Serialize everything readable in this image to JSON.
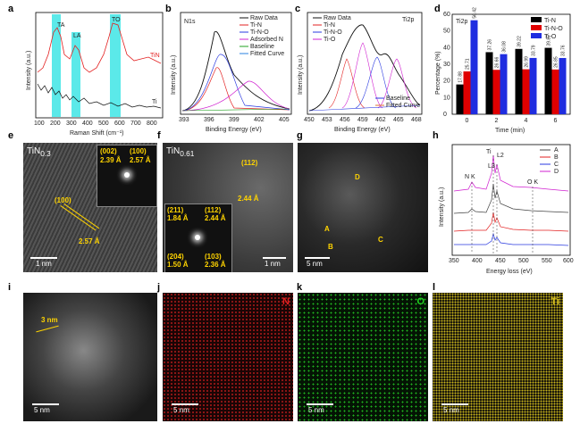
{
  "panels": {
    "a": {
      "label": "a",
      "peaks": [
        "TA",
        "LA",
        "TO"
      ],
      "series": [
        "TiN",
        "Ti"
      ],
      "xlabel": "Raman Shift (cm⁻¹)",
      "ylabel": "Intensity (a.u.)",
      "xticks": [
        "100",
        "200",
        "300",
        "400",
        "500",
        "600",
        "700",
        "800"
      ]
    },
    "b": {
      "label": "b",
      "tag": "N1s",
      "legend": [
        "Raw Data",
        "Ti-N",
        "Ti-N-O",
        "Adsorbed N",
        "Baseline",
        "Fitted Curve"
      ],
      "xlabel": "Binding Energy (eV)",
      "ylabel": "Intensity (a.u.)",
      "xticks": [
        "393",
        "396",
        "399",
        "402",
        "405"
      ]
    },
    "c": {
      "label": "c",
      "tag": "Ti2p",
      "legend": [
        "Raw Data",
        "Ti-N",
        "Ti-N-O",
        "Ti-O"
      ],
      "legend2": [
        "Baseline",
        "Fitted Curve"
      ],
      "xlabel": "Binding Energy (eV)",
      "ylabel": "Intensity (a.u.)",
      "xticks": [
        "450",
        "453",
        "456",
        "459",
        "462",
        "465",
        "468"
      ]
    },
    "d": {
      "label": "d",
      "tag": "Ti2p",
      "xlabel": "Time (min)",
      "ylabel": "Percentage (%)",
      "yticks": [
        "0",
        "10",
        "20",
        "30",
        "40",
        "50",
        "60"
      ]
    },
    "e": {
      "label": "e",
      "title": "TiN",
      "title_sub": "0.3",
      "fft1": "(002)",
      "fft1b": "2.39 Å",
      "fft2": "(100)",
      "fft2b": "2.57 Å",
      "plane": "(100)",
      "spacing": "2.57 Å",
      "scale": "1 nm"
    },
    "f": {
      "label": "f",
      "title": "TiN",
      "title_sub": "0.61",
      "plane": "(112)",
      "spacing": "2.44 Å",
      "f1": "(211)",
      "f1b": "1.84 Å",
      "f2": "(112)",
      "f2b": "2.44 Å",
      "f3": "(204)",
      "f3b": "1.50 Å",
      "f4": "(103)",
      "f4b": "2.36 Å",
      "scale": "1 nm"
    },
    "g": {
      "label": "g",
      "points": [
        "D",
        "A",
        "B",
        "C"
      ],
      "scale": "5 nm"
    },
    "h": {
      "label": "h",
      "legend": [
        "A",
        "B",
        "C",
        "D"
      ],
      "peaks": [
        "N K",
        "Ti",
        "L2",
        "L3",
        "O K"
      ],
      "xlabel": "Energy loss (eV)",
      "ylabel": "Intensity (a.u.)",
      "xticks": [
        "350",
        "400",
        "450",
        "500",
        "550",
        "600"
      ]
    },
    "i": {
      "label": "i",
      "width": "3 nm",
      "scale": "5 nm"
    },
    "j": {
      "label": "j",
      "element": "N",
      "scale": "5 nm",
      "color": "#e02020"
    },
    "k": {
      "label": "k",
      "element": "O",
      "scale": "5 nm",
      "color": "#20d020"
    },
    "l": {
      "label": "l",
      "element": "Ti",
      "scale": "5 nm",
      "color": "#d8c020"
    }
  },
  "chart_data": [
    {
      "type": "bar",
      "panel": "d",
      "categories": [
        "0",
        "2",
        "4",
        "6"
      ],
      "series": [
        {
          "name": "Ti-N",
          "values": [
            17.88,
            37.26,
            39.22,
            39.87
          ],
          "color": "#000000"
        },
        {
          "name": "Ti-N-O",
          "values": [
            25.71,
            26.66,
            26.99,
            26.85
          ],
          "color": "#e00000"
        },
        {
          "name": "Ti-O",
          "values": [
            56.42,
            36.08,
            33.79,
            33.76
          ],
          "color": "#1f2de0"
        }
      ],
      "xlabel": "Time (min)",
      "ylabel": "Percentage (%)",
      "ylim": [
        0,
        60
      ]
    }
  ]
}
